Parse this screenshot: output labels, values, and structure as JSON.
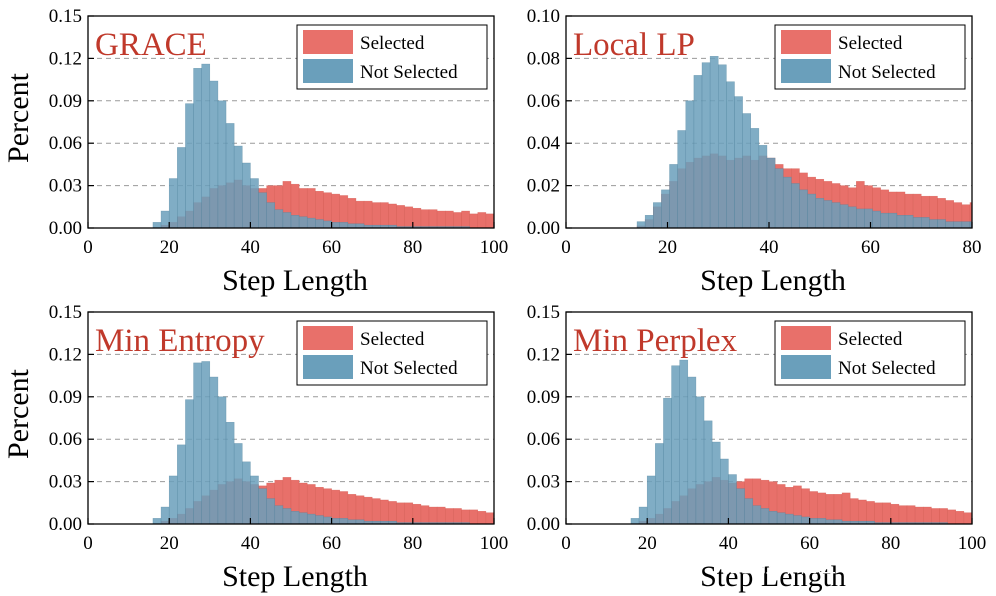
{
  "colors": {
    "selected": "#e8706a",
    "not_selected": "#6a9fbb",
    "panel_title": "#c0392b",
    "grid": "#9a9a9a"
  },
  "watermark": "掘金技术社区 @ AICAT",
  "chart_data": [
    {
      "type": "histogram",
      "title": "GRACE",
      "xlabel": "Step Length",
      "ylabel": "Percent",
      "xlim": [
        0,
        100
      ],
      "ylim": [
        0,
        0.15
      ],
      "xticks": [
        0,
        20,
        40,
        60,
        80,
        100
      ],
      "xtick_labels": [
        "0",
        "20",
        "40",
        "60",
        "80",
        "100"
      ],
      "yticks": [
        0,
        0.03,
        0.06,
        0.09,
        0.12,
        0.15
      ],
      "ytick_labels": [
        "0.00",
        "0.03",
        "0.06",
        "0.09",
        "0.12",
        "0.15"
      ],
      "grid": "horizontal dashed",
      "legend": {
        "position": "top-right",
        "entries": [
          "Selected",
          "Not Selected"
        ]
      },
      "bin_start": 16,
      "bin_width": 2,
      "series": [
        {
          "name": "Selected",
          "values": [
            0.0,
            0.002,
            0.004,
            0.008,
            0.012,
            0.018,
            0.022,
            0.028,
            0.03,
            0.032,
            0.034,
            0.03,
            0.028,
            0.028,
            0.03,
            0.03,
            0.033,
            0.031,
            0.028,
            0.028,
            0.026,
            0.025,
            0.024,
            0.023,
            0.021,
            0.019,
            0.019,
            0.018,
            0.018,
            0.017,
            0.016,
            0.015,
            0.014,
            0.013,
            0.013,
            0.012,
            0.012,
            0.011,
            0.012,
            0.01,
            0.011,
            0.01
          ]
        },
        {
          "name": "Not Selected",
          "values": [
            0.004,
            0.012,
            0.035,
            0.057,
            0.088,
            0.113,
            0.116,
            0.104,
            0.09,
            0.074,
            0.058,
            0.046,
            0.035,
            0.025,
            0.018,
            0.013,
            0.011,
            0.009,
            0.008,
            0.007,
            0.006,
            0.005,
            0.004,
            0.004,
            0.003,
            0.003,
            0.002,
            0.002,
            0.002,
            0.002,
            0.001,
            0.001,
            0.001,
            0.001,
            0.001,
            0.001,
            0.001,
            0.001,
            0.001,
            0.0,
            0.0,
            0.0
          ]
        }
      ]
    },
    {
      "type": "histogram",
      "title": "Local LP",
      "xlabel": "Step Length",
      "ylabel": "",
      "xlim": [
        0,
        80
      ],
      "ylim": [
        0,
        0.1
      ],
      "xticks": [
        0,
        20,
        40,
        60,
        80
      ],
      "xtick_labels": [
        "0",
        "20",
        "40",
        "60",
        "80"
      ],
      "yticks": [
        0,
        0.02,
        0.04,
        0.06,
        0.08,
        0.1
      ],
      "ytick_labels": [
        "0.00",
        "0.02",
        "0.04",
        "0.06",
        "0.08",
        "0.10"
      ],
      "grid": "horizontal dashed",
      "legend": {
        "position": "top-right",
        "entries": [
          "Selected",
          "Not Selected"
        ]
      },
      "bin_start": 14,
      "bin_width": 1.6,
      "series": [
        {
          "name": "Selected",
          "values": [
            0.001,
            0.004,
            0.01,
            0.016,
            0.022,
            0.028,
            0.031,
            0.033,
            0.034,
            0.035,
            0.034,
            0.032,
            0.033,
            0.034,
            0.032,
            0.034,
            0.033,
            0.03,
            0.028,
            0.028,
            0.026,
            0.024,
            0.023,
            0.022,
            0.021,
            0.02,
            0.019,
            0.022,
            0.02,
            0.019,
            0.018,
            0.017,
            0.017,
            0.016,
            0.016,
            0.015,
            0.015,
            0.014,
            0.013,
            0.012,
            0.011,
            0.012
          ]
        },
        {
          "name": "Not Selected",
          "values": [
            0.003,
            0.006,
            0.012,
            0.018,
            0.03,
            0.046,
            0.06,
            0.072,
            0.078,
            0.081,
            0.077,
            0.069,
            0.062,
            0.054,
            0.047,
            0.039,
            0.033,
            0.028,
            0.024,
            0.021,
            0.018,
            0.016,
            0.014,
            0.013,
            0.012,
            0.011,
            0.01,
            0.009,
            0.009,
            0.008,
            0.007,
            0.007,
            0.006,
            0.006,
            0.005,
            0.005,
            0.004,
            0.004,
            0.003,
            0.003,
            0.003,
            0.003
          ]
        }
      ]
    },
    {
      "type": "histogram",
      "title": "Min Entropy",
      "xlabel": "Step Length",
      "ylabel": "Percent",
      "xlim": [
        0,
        100
      ],
      "ylim": [
        0,
        0.15
      ],
      "xticks": [
        0,
        20,
        40,
        60,
        80,
        100
      ],
      "xtick_labels": [
        "0",
        "20",
        "40",
        "60",
        "80",
        "100"
      ],
      "yticks": [
        0,
        0.03,
        0.06,
        0.09,
        0.12,
        0.15
      ],
      "ytick_labels": [
        "0.00",
        "0.03",
        "0.06",
        "0.09",
        "0.12",
        "0.15"
      ],
      "grid": "horizontal dashed",
      "legend": {
        "position": "top-right",
        "entries": [
          "Selected",
          "Not Selected"
        ]
      },
      "bin_start": 16,
      "bin_width": 2,
      "series": [
        {
          "name": "Selected",
          "values": [
            0.0,
            0.002,
            0.004,
            0.007,
            0.011,
            0.016,
            0.02,
            0.024,
            0.028,
            0.03,
            0.032,
            0.03,
            0.028,
            0.027,
            0.029,
            0.031,
            0.033,
            0.031,
            0.029,
            0.028,
            0.026,
            0.025,
            0.024,
            0.023,
            0.021,
            0.02,
            0.019,
            0.018,
            0.017,
            0.016,
            0.015,
            0.015,
            0.014,
            0.013,
            0.012,
            0.012,
            0.011,
            0.011,
            0.01,
            0.01,
            0.009,
            0.008
          ]
        },
        {
          "name": "Not Selected",
          "values": [
            0.004,
            0.012,
            0.034,
            0.056,
            0.088,
            0.114,
            0.115,
            0.104,
            0.09,
            0.072,
            0.057,
            0.044,
            0.034,
            0.025,
            0.018,
            0.013,
            0.011,
            0.009,
            0.008,
            0.007,
            0.006,
            0.005,
            0.004,
            0.004,
            0.003,
            0.003,
            0.002,
            0.002,
            0.002,
            0.002,
            0.001,
            0.001,
            0.001,
            0.001,
            0.001,
            0.001,
            0.001,
            0.001,
            0.001,
            0.0,
            0.0,
            0.0
          ]
        }
      ]
    },
    {
      "type": "histogram",
      "title": "Min Perplex",
      "xlabel": "Step Length",
      "ylabel": "",
      "xlim": [
        0,
        100
      ],
      "ylim": [
        0,
        0.15
      ],
      "xticks": [
        0,
        20,
        40,
        60,
        80,
        100
      ],
      "xtick_labels": [
        "0",
        "20",
        "40",
        "60",
        "80",
        "100"
      ],
      "yticks": [
        0,
        0.03,
        0.06,
        0.09,
        0.12,
        0.15
      ],
      "ytick_labels": [
        "0.00",
        "0.03",
        "0.06",
        "0.09",
        "0.12",
        "0.15"
      ],
      "grid": "horizontal dashed",
      "legend": {
        "position": "top-right",
        "entries": [
          "Selected",
          "Not Selected"
        ]
      },
      "bin_start": 16,
      "bin_width": 2,
      "series": [
        {
          "name": "Selected",
          "values": [
            0.0,
            0.002,
            0.004,
            0.007,
            0.011,
            0.016,
            0.02,
            0.025,
            0.028,
            0.03,
            0.033,
            0.031,
            0.029,
            0.03,
            0.032,
            0.032,
            0.031,
            0.03,
            0.028,
            0.026,
            0.027,
            0.025,
            0.023,
            0.022,
            0.021,
            0.021,
            0.022,
            0.018,
            0.017,
            0.016,
            0.015,
            0.015,
            0.014,
            0.013,
            0.013,
            0.012,
            0.012,
            0.011,
            0.011,
            0.01,
            0.009,
            0.008
          ]
        },
        {
          "name": "Not Selected",
          "values": [
            0.004,
            0.012,
            0.034,
            0.057,
            0.089,
            0.112,
            0.116,
            0.104,
            0.09,
            0.073,
            0.058,
            0.046,
            0.035,
            0.025,
            0.018,
            0.013,
            0.011,
            0.009,
            0.008,
            0.007,
            0.006,
            0.005,
            0.004,
            0.004,
            0.003,
            0.003,
            0.002,
            0.002,
            0.002,
            0.002,
            0.001,
            0.001,
            0.001,
            0.001,
            0.001,
            0.001,
            0.001,
            0.001,
            0.001,
            0.0,
            0.0,
            0.0
          ]
        }
      ]
    }
  ]
}
